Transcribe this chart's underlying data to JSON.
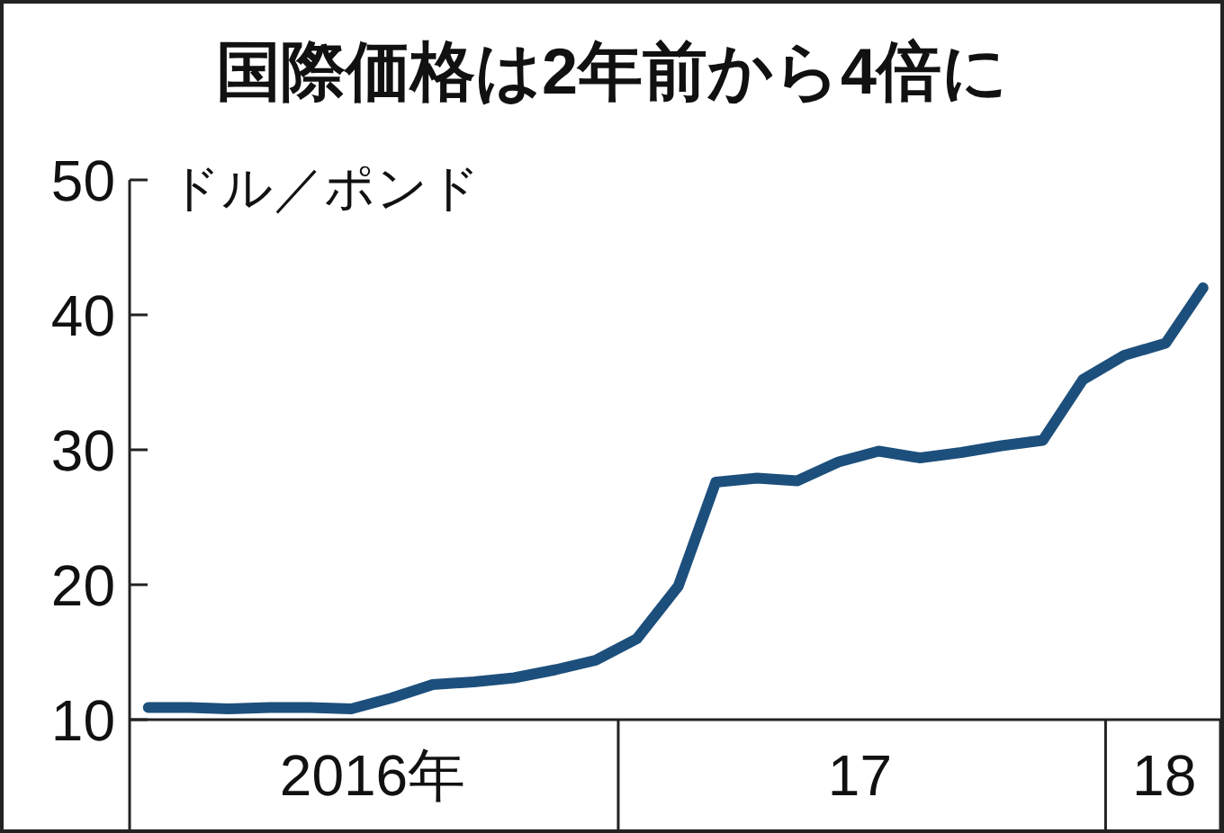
{
  "chart_data": {
    "type": "line",
    "title": "国際価格は2年前から4倍に",
    "ylabel": "ドル／ポンド",
    "x": [
      "2016-01-15",
      "2016-02-15",
      "2016-03-15",
      "2016-04-15",
      "2016-05-15",
      "2016-06-15",
      "2016-07-15",
      "2016-08-15",
      "2016-09-15",
      "2016-10-15",
      "2016-11-15",
      "2016-12-15",
      "2017-01-15",
      "2017-02-15",
      "2017-03-15",
      "2017-04-15",
      "2017-05-15",
      "2017-06-15",
      "2017-07-15",
      "2017-08-15",
      "2017-09-15",
      "2017-10-15",
      "2017-11-15",
      "2017-12-15",
      "2018-01-15",
      "2018-02-15",
      "2018-03-15"
    ],
    "series": [
      {
        "color": "#1d4f7c",
        "values": [
          10.9,
          10.9,
          10.8,
          10.9,
          10.9,
          10.8,
          11.6,
          12.6,
          12.8,
          13.1,
          13.7,
          14.4,
          16.0,
          19.9,
          27.6,
          27.9,
          27.7,
          29.1,
          29.9,
          29.4,
          29.8,
          30.3,
          30.7,
          35.2,
          37.0,
          37.9,
          42.0
        ]
      }
    ],
    "xlim": [
      "2016-01-01",
      "2018-03-28"
    ],
    "xticks": [
      {
        "value": "2016-07-01",
        "label": "2016年"
      },
      {
        "value": "2017-01-01",
        "label": null
      },
      {
        "value": "2017-07-01",
        "label": "17"
      },
      {
        "value": "2018-01-01",
        "label": null
      },
      {
        "value": "2018-02-14",
        "label": "18"
      }
    ],
    "ylim": [
      10,
      50
    ],
    "yticks": [
      10,
      20,
      30,
      40,
      50
    ],
    "grid": false,
    "marker": "none",
    "line_style": "solid"
  }
}
